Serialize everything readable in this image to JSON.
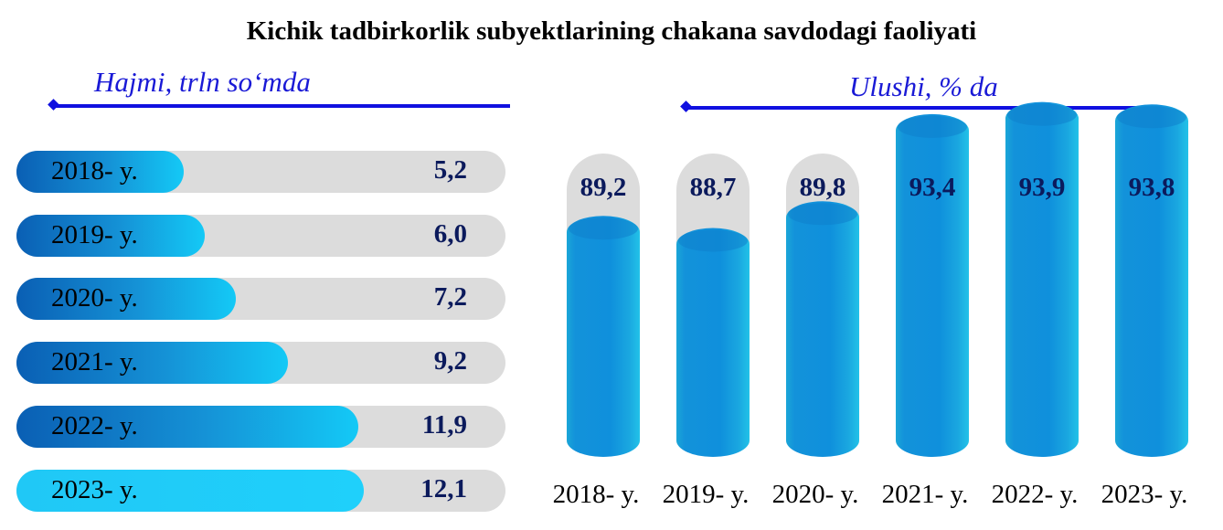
{
  "title": "Kichik tadbirkorlik subyektlarining chakana savdodagi faoliyati",
  "left_panel_label": "Hajmi, trln so‘mda",
  "right_panel_label": "Ulushi, % da",
  "colors": {
    "accent_line": "#1010e0",
    "bar_dark": "#0a5fb4",
    "bar_light": "#14c9f6",
    "track": "#dcdcdc",
    "value_text": "#0b1a5c"
  },
  "chart_data": [
    {
      "type": "bar",
      "orientation": "horizontal",
      "label": "Hajmi, trln so‘mda",
      "categories": [
        "2018- y.",
        "2019- y.",
        "2020- y.",
        "2021- y.",
        "2022- y.",
        "2023- y."
      ],
      "values": [
        5.2,
        6.0,
        7.2,
        9.2,
        11.9,
        12.1
      ],
      "value_labels": [
        "5,2",
        "6,0",
        "7,2",
        "9,2",
        "11,9",
        "12,1"
      ]
    },
    {
      "type": "bar",
      "orientation": "vertical",
      "label": "Ulushi, % da",
      "categories": [
        "2018- y.",
        "2019- y.",
        "2020- y.",
        "2021- y.",
        "2022- y.",
        "2023- y."
      ],
      "values": [
        89.2,
        88.7,
        89.8,
        93.4,
        93.9,
        93.8
      ],
      "value_labels": [
        "89,2",
        "88,7",
        "89,8",
        "93,4",
        "93,9",
        "93,8"
      ]
    }
  ]
}
